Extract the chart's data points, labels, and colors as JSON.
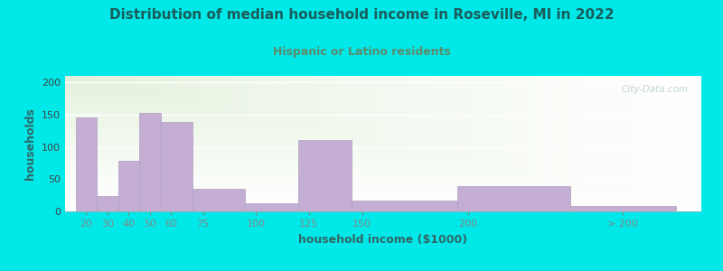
{
  "title": "Distribution of median household income in Roseville, MI in 2022",
  "subtitle": "Hispanic or Latino residents",
  "xlabel": "household income ($1000)",
  "ylabel": "households",
  "background_outer": "#00e8e8",
  "background_inner_top_left": "#dff0d8",
  "background_inner_bottom_right": "#ffffff",
  "bar_color": "#c4aed4",
  "bar_edge_color": "#b09fc0",
  "title_color": "#1a5c5c",
  "subtitle_color": "#5c8a6b",
  "watermark": "City-Data.com",
  "values": [
    146,
    24,
    79,
    153,
    138,
    35,
    13,
    110,
    17,
    39,
    8
  ],
  "bar_lefts": [
    15,
    25,
    35,
    45,
    55,
    70,
    95,
    120,
    145,
    195,
    248
  ],
  "bar_widths": [
    10,
    10,
    10,
    10,
    15,
    25,
    25,
    25,
    50,
    53,
    50
  ],
  "xlim": [
    10,
    310
  ],
  "ylim": [
    0,
    210
  ],
  "yticks": [
    0,
    50,
    100,
    150,
    200
  ],
  "xtick_positions": [
    20,
    30,
    40,
    50,
    60,
    75,
    100,
    125,
    150,
    200,
    273
  ],
  "xtick_labels": [
    "20",
    "30",
    "40",
    "50",
    "60",
    "75",
    "100",
    "125",
    "150",
    "200",
    "> 200"
  ],
  "figsize": [
    8.0,
    3.0
  ],
  "dpi": 100
}
